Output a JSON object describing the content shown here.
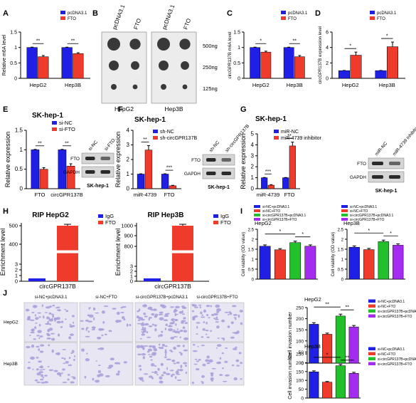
{
  "panel_letters": [
    "A",
    "B",
    "C",
    "D",
    "E",
    "F",
    "G",
    "H",
    "I",
    "J"
  ],
  "colors": {
    "blue": "#1f1fe6",
    "red": "#ef3b2c",
    "green": "#22c02b",
    "purple": "#a32cf0",
    "black": "#000000",
    "crystal": "#a9a1dc"
  },
  "panelB": {
    "cols": [
      "pcDNA3.1",
      "FTO",
      "pcDNA3.1",
      "FTO"
    ],
    "rows": [
      "500ng",
      "250ng",
      "125ng"
    ],
    "cells": [
      "HepG2",
      "Hep3B"
    ]
  },
  "blots": {
    "E": {
      "lanes": [
        "si-NC",
        "si-FTO"
      ],
      "rows": [
        "FTO",
        "GAPDH"
      ],
      "caption": "SK-hep-1"
    },
    "F": {
      "lanes": [
        "sh-NC",
        "sh-circGPR137B"
      ],
      "rows": [
        "FTO",
        "GAPDH"
      ],
      "caption": "SK-hep-1"
    },
    "G": {
      "lanes": [
        "miR-NC",
        "miR-4739 inhibitor"
      ],
      "rows": [
        "FTO",
        "GAPDH"
      ],
      "caption": "SK-hep-1"
    }
  },
  "panelJ": {
    "cols": [
      "si-NC+pcDNA3.1",
      "si-NC+FTO",
      "si-circGPR137B+pcDNA3.1",
      "si-circGPR137B+FTO"
    ],
    "rows": [
      "HepG2",
      "Hep3B"
    ]
  },
  "chart_data": [
    {
      "id": "A",
      "type": "bar",
      "categories": [
        "HepG2",
        "Hep3B"
      ],
      "ylabel": "Relative m6A level",
      "ylim": [
        0,
        1.5
      ],
      "yticks": [
        0,
        0.5,
        1,
        1.5
      ],
      "series": [
        {
          "name": "pcDNA3.1",
          "color": "blue",
          "values": [
            1.0,
            1.0
          ],
          "err": [
            0.01,
            0.01
          ]
        },
        {
          "name": "FTO",
          "color": "red",
          "values": [
            0.7,
            0.8
          ],
          "err": [
            0.04,
            0.03
          ]
        }
      ],
      "sig": [
        "**",
        "**"
      ]
    },
    {
      "id": "C",
      "type": "bar",
      "categories": [
        "HepG2",
        "Hep3B"
      ],
      "ylabel": "circGPR137B m6A level",
      "ylim": [
        0,
        1.5
      ],
      "yticks": [
        0,
        0.5,
        1,
        1.5
      ],
      "series": [
        {
          "name": "pcDNA3.1",
          "color": "blue",
          "values": [
            1.0,
            1.0
          ],
          "err": [
            0.01,
            0.01
          ]
        },
        {
          "name": "FTO",
          "color": "red",
          "values": [
            0.85,
            0.7
          ],
          "err": [
            0.03,
            0.04
          ]
        }
      ],
      "sig": [
        "*",
        "**"
      ]
    },
    {
      "id": "D",
      "type": "bar",
      "categories": [
        "HepG2",
        "Hep3B"
      ],
      "ylabel": "circGPR137B expression level",
      "ylim": [
        0,
        6
      ],
      "yticks": [
        0,
        2,
        4,
        6
      ],
      "series": [
        {
          "name": "pcDNA3.1",
          "color": "blue",
          "values": [
            1.0,
            1.0
          ],
          "err": [
            0.02,
            0.02
          ]
        },
        {
          "name": "FTO",
          "color": "red",
          "values": [
            3.0,
            4.1
          ],
          "err": [
            0.4,
            0.6
          ]
        }
      ],
      "sig": [
        "*",
        "*"
      ]
    },
    {
      "id": "E",
      "type": "bar",
      "title": "SK-hep-1",
      "categories": [
        "FTO",
        "circGPR137B"
      ],
      "ylabel": "Relative expression",
      "ylim": [
        0,
        1.5
      ],
      "yticks": [
        0,
        0.5,
        1,
        1.5
      ],
      "series": [
        {
          "name": "si-NC",
          "color": "blue",
          "values": [
            1.0,
            1.0
          ],
          "err": [
            0.01,
            0.01
          ]
        },
        {
          "name": "si-FTO",
          "color": "red",
          "values": [
            0.5,
            0.58
          ],
          "err": [
            0.04,
            0.06
          ]
        }
      ],
      "sig": [
        "**",
        "**"
      ]
    },
    {
      "id": "F",
      "type": "bar",
      "title": "SK-hep-1",
      "categories": [
        "miR-4739",
        "FTO"
      ],
      "ylabel": "Relative expression",
      "ylim": [
        0,
        4
      ],
      "yticks": [
        0,
        1,
        2,
        3,
        4
      ],
      "series": [
        {
          "name": "sh-NC",
          "color": "blue",
          "values": [
            1.0,
            1.0
          ],
          "err": [
            0.02,
            0.02
          ]
        },
        {
          "name": "sh-circGPR137B",
          "color": "red",
          "values": [
            2.65,
            0.2
          ],
          "err": [
            0.3,
            0.03
          ]
        }
      ],
      "sig": [
        "**",
        "***"
      ]
    },
    {
      "id": "G",
      "type": "bar",
      "title": "SK-hep-1",
      "categories": [
        "miR-4739",
        "FTO"
      ],
      "ylabel": "Relative expression",
      "ylim": [
        0,
        5
      ],
      "yticks": [
        0,
        1,
        2,
        3,
        4,
        5
      ],
      "series": [
        {
          "name": "miR-NC",
          "color": "blue",
          "values": [
            1.0,
            1.0
          ],
          "err": [
            0.02,
            0.02
          ]
        },
        {
          "name": "miR-4739 inhibitor",
          "color": "red",
          "values": [
            0.32,
            3.9
          ],
          "err": [
            0.05,
            0.35
          ]
        }
      ],
      "sig": [
        "***",
        "**"
      ]
    },
    {
      "id": "H1",
      "type": "bar",
      "title": "RIP HepG2",
      "categories": [
        "circGPR137B"
      ],
      "ylabel": "Enrichment level",
      "ylim": [
        0,
        500
      ],
      "broken_axis": true,
      "yticks": [
        "0",
        "1",
        "2",
        "3",
        "400",
        "500"
      ],
      "series": [
        {
          "name": "IgG",
          "color": "blue",
          "values": [
            1
          ],
          "err": [
            0
          ]
        },
        {
          "name": "FTO",
          "color": "red",
          "values": [
            480
          ],
          "err": [
            8
          ]
        }
      ]
    },
    {
      "id": "H2",
      "type": "bar",
      "title": "RIP Hep3B",
      "categories": [
        "circGPR137B"
      ],
      "ylabel": "Enrichment level",
      "ylim": [
        0,
        1000
      ],
      "broken_axis": true,
      "yticks": [
        "0",
        "1",
        "2",
        "3",
        "800",
        "900",
        "1000"
      ],
      "series": [
        {
          "name": "IgG",
          "color": "blue",
          "values": [
            1
          ],
          "err": [
            0
          ]
        },
        {
          "name": "FTO",
          "color": "red",
          "values": [
            990
          ],
          "err": [
            15
          ]
        }
      ]
    },
    {
      "id": "I1",
      "type": "bar",
      "title": "HepG2",
      "categories": [
        "si-NC+pcDNA3.1",
        "si-NC+FTO",
        "si-circGPR137B+pcDNA3.1",
        "si-circGPR137B+FTO"
      ],
      "ylabel": "Cell viability (OD value)",
      "ylim": [
        0,
        2.5
      ],
      "yticks": [
        0,
        0.5,
        1,
        1.5,
        2,
        2.5
      ],
      "values": [
        1.65,
        1.47,
        1.83,
        1.65
      ],
      "colors": [
        "blue",
        "red",
        "green",
        "purple"
      ],
      "sig": [
        "*",
        "*"
      ]
    },
    {
      "id": "I2",
      "type": "bar",
      "title": "Hep3B",
      "categories": [
        "si-NC+pcDNA3.1",
        "si-NC+FTO",
        "si-circGPR137B+pcDNA3.1",
        "si-circGPR137B+FTO"
      ],
      "ylabel": "Cell viability (OD value)",
      "ylim": [
        0,
        2.5
      ],
      "yticks": [
        0,
        0.5,
        1,
        1.5,
        2,
        2.5
      ],
      "values": [
        1.6,
        1.48,
        1.88,
        1.7
      ],
      "colors": [
        "blue",
        "red",
        "green",
        "purple"
      ],
      "sig": [
        "*",
        "*"
      ]
    },
    {
      "id": "J1",
      "type": "bar",
      "title": "HepG2",
      "categories": [
        "si-NC+pcDNA3.1",
        "si-NC+FTO",
        "si-circGPR137B+pcDNA3.1",
        "si-circGPR137B+FTO"
      ],
      "ylabel": "Cell invasion number",
      "ylim": [
        0,
        250
      ],
      "yticks": [
        0,
        50,
        100,
        150,
        200,
        250
      ],
      "values": [
        175,
        130,
        212,
        163
      ],
      "colors": [
        "blue",
        "red",
        "green",
        "purple"
      ],
      "sig": [
        "**",
        "**"
      ]
    },
    {
      "id": "J2",
      "type": "bar",
      "title": "Hep3B",
      "categories": [
        "si-NC+pcDNA3.1",
        "si-NC+FTO",
        "si-circGPR137B+pcDNA3.1",
        "si-circGPR137B+FTO"
      ],
      "ylabel": "Cell invasion number",
      "ylim": [
        0,
        250
      ],
      "yticks": [
        0,
        50,
        100,
        150,
        200,
        250
      ],
      "values": [
        148,
        90,
        183,
        140
      ],
      "colors": [
        "blue",
        "red",
        "green",
        "purple"
      ],
      "sig": [
        "*",
        "**"
      ]
    }
  ]
}
